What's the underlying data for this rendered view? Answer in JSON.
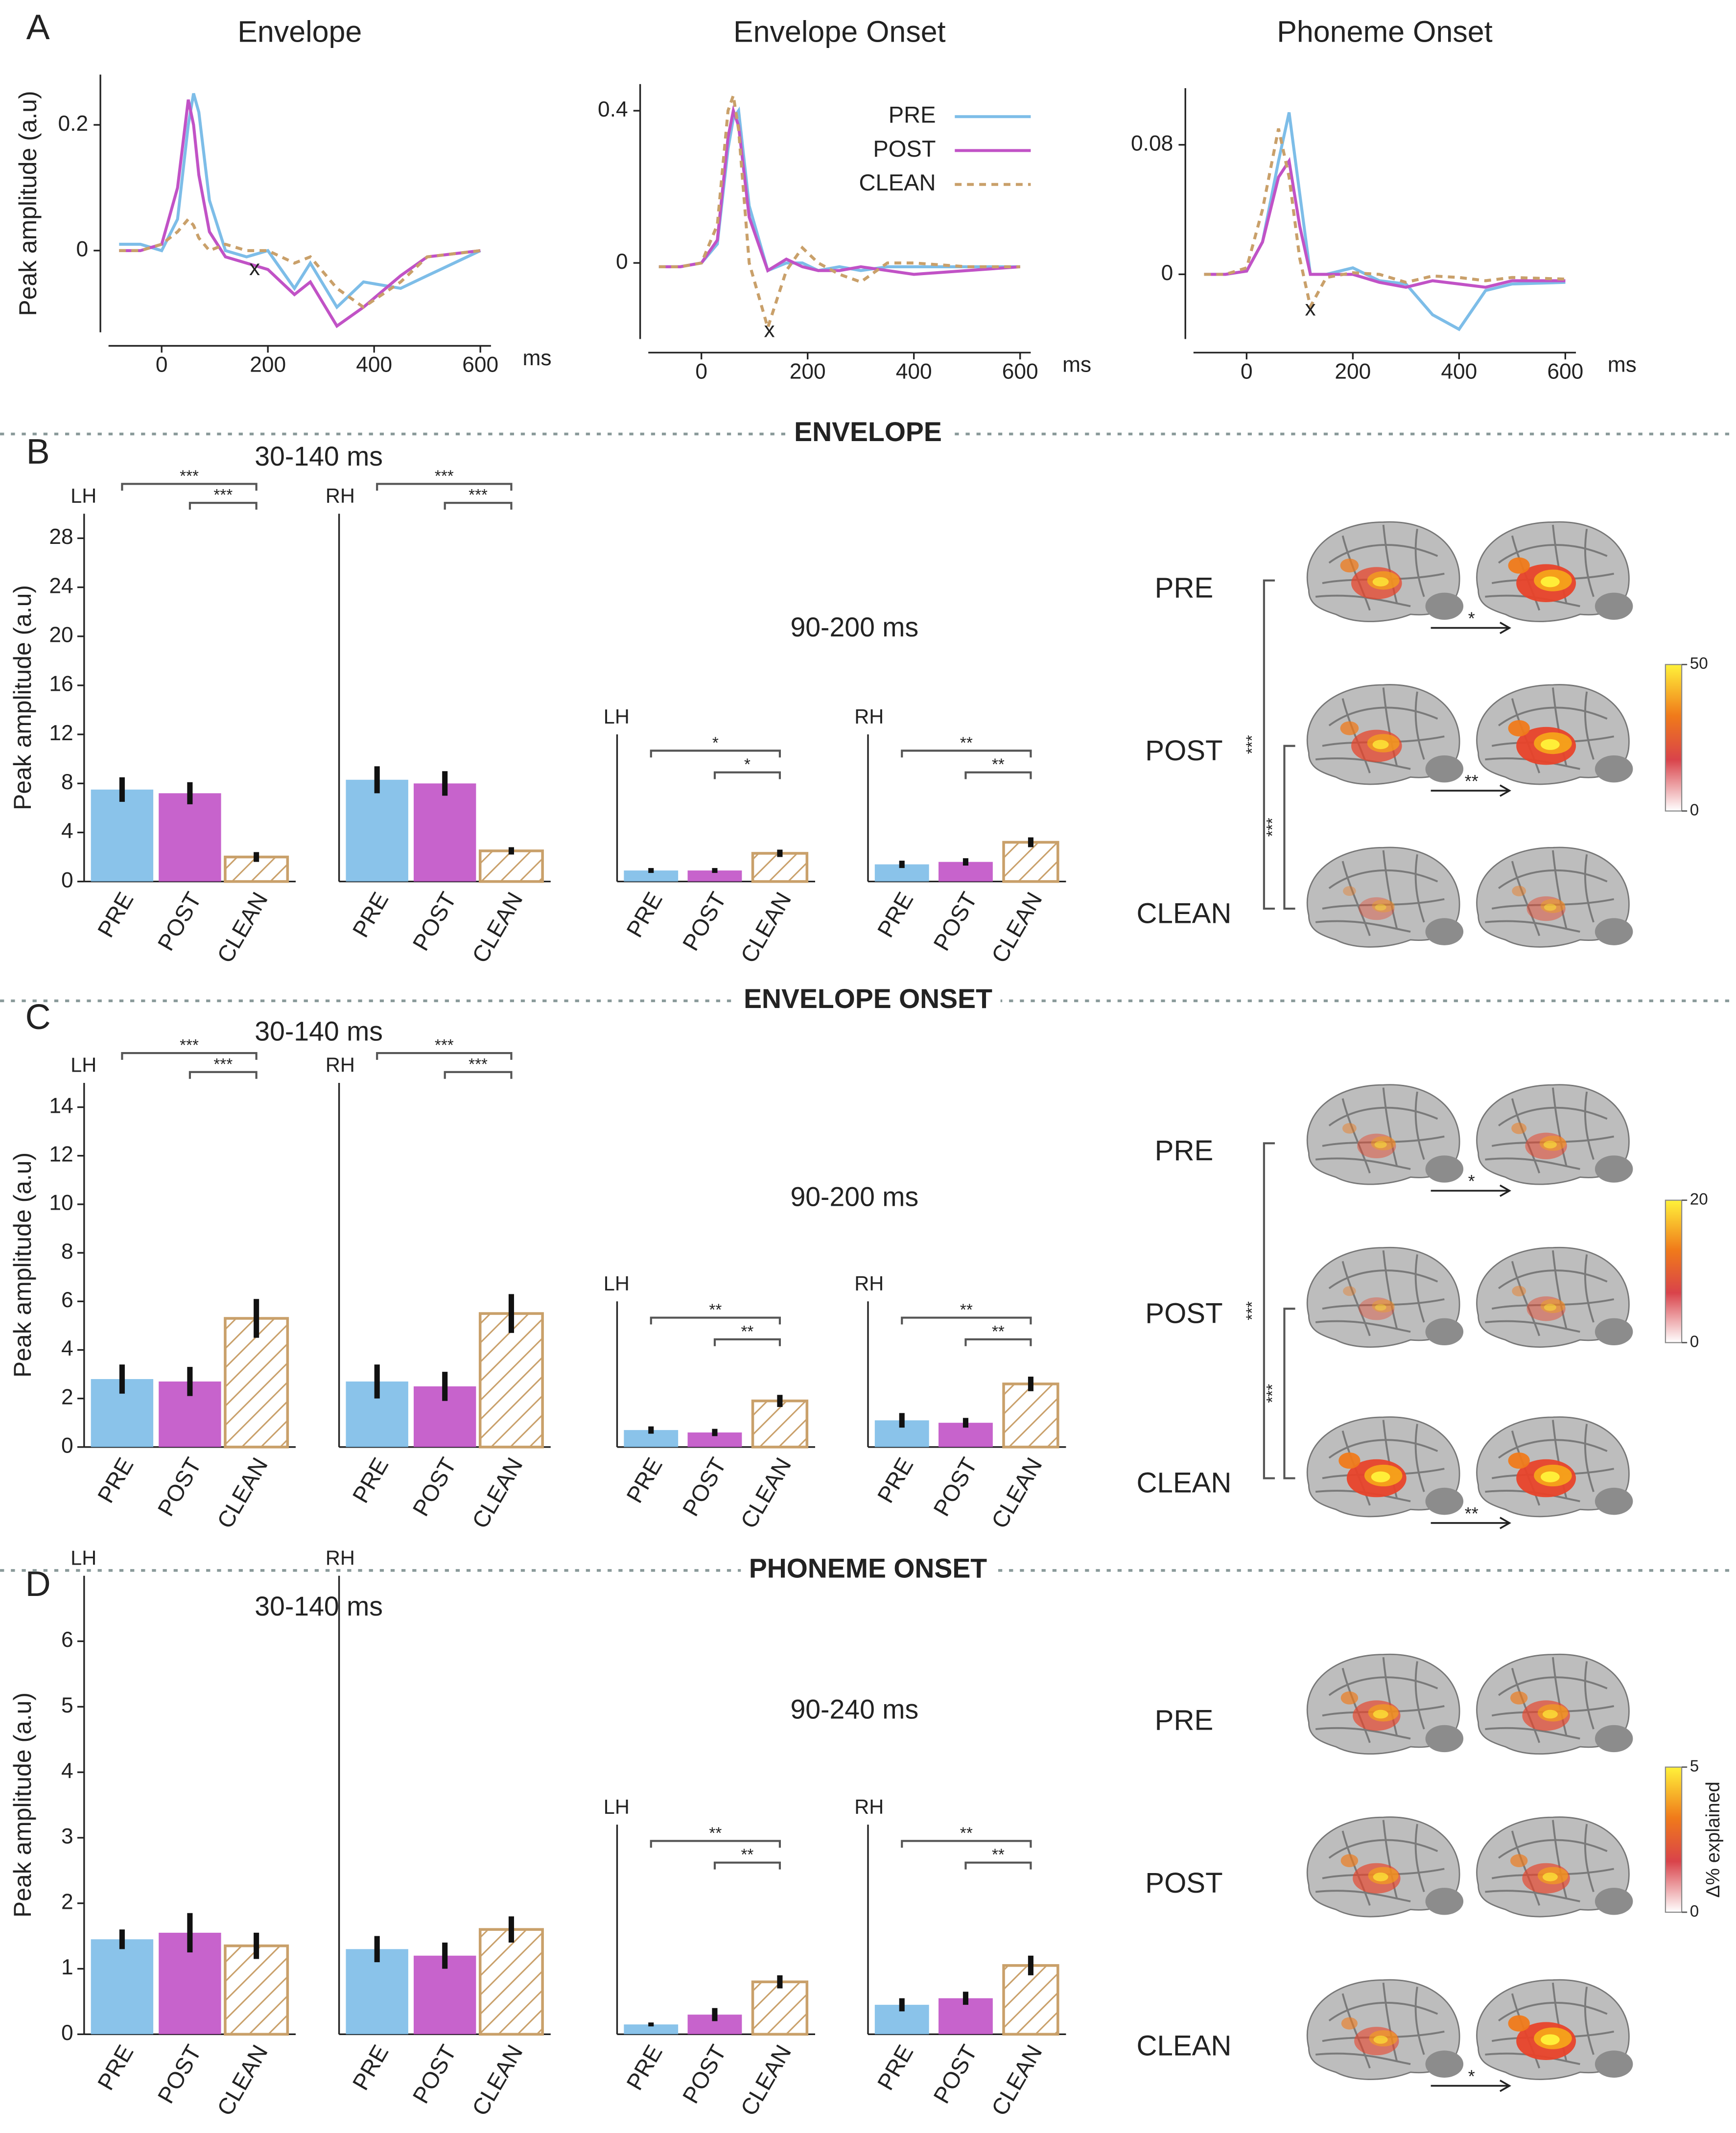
{
  "panel_labels": [
    "A",
    "B",
    "C",
    "D"
  ],
  "section_titles": [
    "ENVELOPE",
    "ENVELOPE ONSET",
    "PHONEME ONSET"
  ],
  "time_windows": [
    "30-140 ms",
    "90-200 ms",
    "30-140 ms",
    "90-200 ms",
    "30-140 ms",
    "90-240 ms"
  ],
  "brain_maps": [
    {
      "rows": [
        "PRE",
        "POST",
        "CLEAN"
      ],
      "colorbar_ticks": [
        0,
        50
      ],
      "arrows": [
        "*",
        "**"
      ],
      "brackets": [
        "***",
        "***"
      ]
    },
    {
      "rows": [
        "PRE",
        "POST",
        "CLEAN"
      ],
      "colorbar_ticks": [
        0,
        20
      ],
      "arrows": [
        "*",
        "**"
      ],
      "brackets": [
        "***",
        "***"
      ]
    },
    {
      "rows": [
        "PRE",
        "POST",
        "CLEAN"
      ],
      "colorbar_ticks": [
        0,
        5
      ],
      "colorbar_label": "Δ% explained",
      "arrows": [
        "*"
      ]
    }
  ],
  "chart_data": [
    {
      "type": "line",
      "title": "Envelope",
      "ylabel": "Peak amplitude (a.u)",
      "xunit": "ms",
      "xlim": [
        -100,
        620
      ],
      "ylim": [
        -0.13,
        0.28
      ],
      "xticks": [
        0,
        200,
        400,
        600
      ],
      "yticks": [
        0,
        0.2
      ],
      "x": [
        -80,
        -40,
        0,
        30,
        50,
        60,
        70,
        90,
        120,
        160,
        200,
        250,
        280,
        330,
        380,
        450,
        500,
        600
      ],
      "series": [
        {
          "name": "PRE",
          "color": "#7dbde8",
          "values": [
            0.01,
            0.01,
            0.0,
            0.05,
            0.2,
            0.25,
            0.22,
            0.08,
            0.0,
            -0.01,
            0.0,
            -0.06,
            -0.02,
            -0.09,
            -0.05,
            -0.06,
            -0.04,
            0.0
          ]
        },
        {
          "name": "POST",
          "color": "#c152c6",
          "values": [
            0.0,
            0.0,
            0.01,
            0.1,
            0.24,
            0.2,
            0.12,
            0.03,
            -0.01,
            -0.02,
            -0.03,
            -0.07,
            -0.05,
            -0.12,
            -0.09,
            -0.04,
            -0.01,
            0.0
          ]
        },
        {
          "name": "CLEAN",
          "color": "#c9a06a",
          "dash": true,
          "values": [
            0.0,
            0.0,
            0.01,
            0.03,
            0.05,
            0.04,
            0.02,
            0.0,
            0.01,
            0.0,
            0.0,
            -0.02,
            -0.01,
            -0.06,
            -0.09,
            -0.05,
            -0.01,
            0.0
          ]
        }
      ],
      "annotations": [
        {
          "text": "x",
          "x": 175,
          "y": -0.03
        }
      ]
    },
    {
      "type": "line",
      "title": "Envelope Onset",
      "xunit": "ms",
      "xlim": [
        -100,
        620
      ],
      "ylim": [
        -0.2,
        0.47
      ],
      "xticks": [
        0,
        200,
        400,
        600
      ],
      "yticks": [
        0,
        0.4
      ],
      "legend": true,
      "x": [
        -80,
        -40,
        0,
        30,
        50,
        60,
        70,
        90,
        125,
        160,
        190,
        220,
        260,
        300,
        350,
        400,
        500,
        600
      ],
      "series": [
        {
          "name": "PRE",
          "color": "#7dbde8",
          "values": [
            -0.01,
            -0.01,
            0.0,
            0.05,
            0.3,
            0.38,
            0.4,
            0.15,
            -0.02,
            0.0,
            0.0,
            -0.02,
            -0.01,
            -0.02,
            -0.01,
            -0.01,
            -0.01,
            -0.01
          ]
        },
        {
          "name": "POST",
          "color": "#c152c6",
          "values": [
            -0.01,
            -0.01,
            0.0,
            0.06,
            0.33,
            0.4,
            0.36,
            0.12,
            -0.02,
            0.01,
            -0.01,
            -0.02,
            -0.02,
            -0.01,
            -0.02,
            -0.03,
            -0.02,
            -0.01
          ]
        },
        {
          "name": "CLEAN",
          "color": "#c9a06a",
          "dash": true,
          "values": [
            -0.01,
            -0.01,
            0.0,
            0.1,
            0.4,
            0.44,
            0.35,
            0.0,
            -0.17,
            -0.02,
            0.04,
            0.0,
            -0.03,
            -0.05,
            0.0,
            0.0,
            -0.01,
            -0.01
          ]
        }
      ],
      "annotations": [
        {
          "text": "x",
          "x": 128,
          "y": -0.18
        }
      ]
    },
    {
      "type": "line",
      "title": "Phoneme Onset",
      "xunit": "ms",
      "xlim": [
        -100,
        620
      ],
      "ylim": [
        -0.04,
        0.115
      ],
      "xticks": [
        0,
        200,
        400,
        600
      ],
      "yticks": [
        0,
        0.08
      ],
      "x": [
        -80,
        -40,
        0,
        30,
        60,
        80,
        100,
        120,
        150,
        200,
        250,
        300,
        350,
        400,
        450,
        500,
        600
      ],
      "series": [
        {
          "name": "PRE",
          "color": "#7dbde8",
          "values": [
            0.0,
            0.0,
            0.002,
            0.02,
            0.07,
            0.1,
            0.05,
            0.0,
            0.0,
            0.004,
            -0.004,
            -0.006,
            -0.025,
            -0.034,
            -0.01,
            -0.006,
            -0.005
          ]
        },
        {
          "name": "POST",
          "color": "#c152c6",
          "values": [
            0.0,
            0.0,
            0.002,
            0.02,
            0.06,
            0.07,
            0.03,
            0.0,
            0.0,
            0.0,
            -0.005,
            -0.008,
            -0.004,
            -0.006,
            -0.008,
            -0.004,
            -0.004
          ]
        },
        {
          "name": "CLEAN",
          "color": "#c9a06a",
          "dash": true,
          "values": [
            0.0,
            0.0,
            0.004,
            0.04,
            0.09,
            0.06,
            0.01,
            -0.02,
            -0.002,
            0.001,
            0.0,
            -0.005,
            -0.001,
            -0.002,
            -0.004,
            -0.002,
            -0.003
          ]
        }
      ],
      "annotations": [
        {
          "text": "x",
          "x": 120,
          "y": -0.022
        }
      ]
    },
    {
      "type": "bar",
      "hemisphere": "LH",
      "ylabel": "Peak amplitude (a.u)",
      "categories": [
        "PRE",
        "POST",
        "CLEAN"
      ],
      "colors": [
        "#7dbde8",
        "#c152c6",
        "#c9a06a"
      ],
      "hatched": [
        false,
        false,
        true
      ],
      "ylim": [
        0,
        30
      ],
      "yticks": [
        0,
        4,
        8,
        12,
        16,
        20,
        24,
        28
      ],
      "values": [
        7.5,
        7.2,
        2.0
      ],
      "errors": [
        1.0,
        0.9,
        0.4
      ],
      "significance": [
        {
          "pair": [
            0,
            2
          ],
          "label": "***"
        },
        {
          "pair": [
            1,
            2
          ],
          "label": "***"
        }
      ]
    },
    {
      "type": "bar",
      "hemisphere": "RH",
      "categories": [
        "PRE",
        "POST",
        "CLEAN"
      ],
      "colors": [
        "#7dbde8",
        "#c152c6",
        "#c9a06a"
      ],
      "hatched": [
        false,
        false,
        true
      ],
      "ylim": [
        0,
        30
      ],
      "values": [
        8.3,
        8.0,
        2.5
      ],
      "errors": [
        1.1,
        1.0,
        0.3
      ],
      "significance": [
        {
          "pair": [
            0,
            2
          ],
          "label": "***"
        },
        {
          "pair": [
            1,
            2
          ],
          "label": "***"
        }
      ]
    },
    {
      "type": "bar",
      "hemisphere": "LH",
      "categories": [
        "PRE",
        "POST",
        "CLEAN"
      ],
      "colors": [
        "#7dbde8",
        "#c152c6",
        "#c9a06a"
      ],
      "hatched": [
        false,
        false,
        true
      ],
      "ylim": [
        0,
        12
      ],
      "values": [
        0.9,
        0.9,
        2.3
      ],
      "errors": [
        0.2,
        0.2,
        0.3
      ],
      "significance": [
        {
          "pair": [
            0,
            2
          ],
          "label": "*"
        },
        {
          "pair": [
            1,
            2
          ],
          "label": "*"
        }
      ]
    },
    {
      "type": "bar",
      "hemisphere": "RH",
      "categories": [
        "PRE",
        "POST",
        "CLEAN"
      ],
      "colors": [
        "#7dbde8",
        "#c152c6",
        "#c9a06a"
      ],
      "hatched": [
        false,
        false,
        true
      ],
      "ylim": [
        0,
        12
      ],
      "values": [
        1.4,
        1.6,
        3.2
      ],
      "errors": [
        0.3,
        0.3,
        0.4
      ],
      "significance": [
        {
          "pair": [
            0,
            2
          ],
          "label": "**"
        },
        {
          "pair": [
            1,
            2
          ],
          "label": "**"
        }
      ]
    },
    {
      "type": "bar",
      "hemisphere": "LH",
      "ylabel": "Peak amplitude (a.u)",
      "categories": [
        "PRE",
        "POST",
        "CLEAN"
      ],
      "colors": [
        "#7dbde8",
        "#c152c6",
        "#c9a06a"
      ],
      "hatched": [
        false,
        false,
        true
      ],
      "ylim": [
        0,
        15
      ],
      "yticks": [
        0,
        2,
        4,
        6,
        8,
        10,
        12,
        14
      ],
      "values": [
        2.8,
        2.7,
        5.3
      ],
      "errors": [
        0.6,
        0.6,
        0.8
      ],
      "significance": [
        {
          "pair": [
            0,
            2
          ],
          "label": "***"
        },
        {
          "pair": [
            1,
            2
          ],
          "label": "***"
        }
      ]
    },
    {
      "type": "bar",
      "hemisphere": "RH",
      "categories": [
        "PRE",
        "POST",
        "CLEAN"
      ],
      "colors": [
        "#7dbde8",
        "#c152c6",
        "#c9a06a"
      ],
      "hatched": [
        false,
        false,
        true
      ],
      "ylim": [
        0,
        15
      ],
      "values": [
        2.7,
        2.5,
        5.5
      ],
      "errors": [
        0.7,
        0.6,
        0.8
      ],
      "significance": [
        {
          "pair": [
            0,
            2
          ],
          "label": "***"
        },
        {
          "pair": [
            1,
            2
          ],
          "label": "***"
        }
      ]
    },
    {
      "type": "bar",
      "hemisphere": "LH",
      "categories": [
        "PRE",
        "POST",
        "CLEAN"
      ],
      "colors": [
        "#7dbde8",
        "#c152c6",
        "#c9a06a"
      ],
      "hatched": [
        false,
        false,
        true
      ],
      "ylim": [
        0,
        6
      ],
      "values": [
        0.7,
        0.6,
        1.9
      ],
      "errors": [
        0.15,
        0.15,
        0.25
      ],
      "significance": [
        {
          "pair": [
            0,
            2
          ],
          "label": "**"
        },
        {
          "pair": [
            1,
            2
          ],
          "label": "**"
        }
      ]
    },
    {
      "type": "bar",
      "hemisphere": "RH",
      "categories": [
        "PRE",
        "POST",
        "CLEAN"
      ],
      "colors": [
        "#7dbde8",
        "#c152c6",
        "#c9a06a"
      ],
      "hatched": [
        false,
        false,
        true
      ],
      "ylim": [
        0,
        6
      ],
      "values": [
        1.1,
        1.0,
        2.6
      ],
      "errors": [
        0.3,
        0.2,
        0.3
      ],
      "significance": [
        {
          "pair": [
            0,
            2
          ],
          "label": "**"
        },
        {
          "pair": [
            1,
            2
          ],
          "label": "**"
        }
      ]
    },
    {
      "type": "bar",
      "hemisphere": "LH",
      "ylabel": "Peak amplitude (a.u)",
      "categories": [
        "PRE",
        "POST",
        "CLEAN"
      ],
      "colors": [
        "#7dbde8",
        "#c152c6",
        "#c9a06a"
      ],
      "hatched": [
        false,
        false,
        true
      ],
      "ylim": [
        0,
        7
      ],
      "yticks": [
        0,
        1,
        2,
        3,
        4,
        5,
        6
      ],
      "values": [
        1.45,
        1.55,
        1.35
      ],
      "errors": [
        0.15,
        0.3,
        0.2
      ],
      "significance": []
    },
    {
      "type": "bar",
      "hemisphere": "RH",
      "categories": [
        "PRE",
        "POST",
        "CLEAN"
      ],
      "colors": [
        "#7dbde8",
        "#c152c6",
        "#c9a06a"
      ],
      "hatched": [
        false,
        false,
        true
      ],
      "ylim": [
        0,
        7
      ],
      "values": [
        1.3,
        1.2,
        1.6
      ],
      "errors": [
        0.2,
        0.2,
        0.2
      ],
      "significance": []
    },
    {
      "type": "bar",
      "hemisphere": "LH",
      "categories": [
        "PRE",
        "POST",
        "CLEAN"
      ],
      "colors": [
        "#7dbde8",
        "#c152c6",
        "#c9a06a"
      ],
      "hatched": [
        false,
        false,
        true
      ],
      "ylim": [
        0,
        3.2
      ],
      "values": [
        0.15,
        0.3,
        0.8
      ],
      "errors": [
        0.03,
        0.1,
        0.1
      ],
      "significance": [
        {
          "pair": [
            0,
            2
          ],
          "label": "**"
        },
        {
          "pair": [
            1,
            2
          ],
          "label": "**"
        }
      ]
    },
    {
      "type": "bar",
      "hemisphere": "RH",
      "categories": [
        "PRE",
        "POST",
        "CLEAN"
      ],
      "colors": [
        "#7dbde8",
        "#c152c6",
        "#c9a06a"
      ],
      "hatched": [
        false,
        false,
        true
      ],
      "ylim": [
        0,
        3.2
      ],
      "values": [
        0.45,
        0.55,
        1.05
      ],
      "errors": [
        0.1,
        0.1,
        0.15
      ],
      "significance": [
        {
          "pair": [
            0,
            2
          ],
          "label": "**"
        },
        {
          "pair": [
            1,
            2
          ],
          "label": "**"
        }
      ]
    }
  ]
}
